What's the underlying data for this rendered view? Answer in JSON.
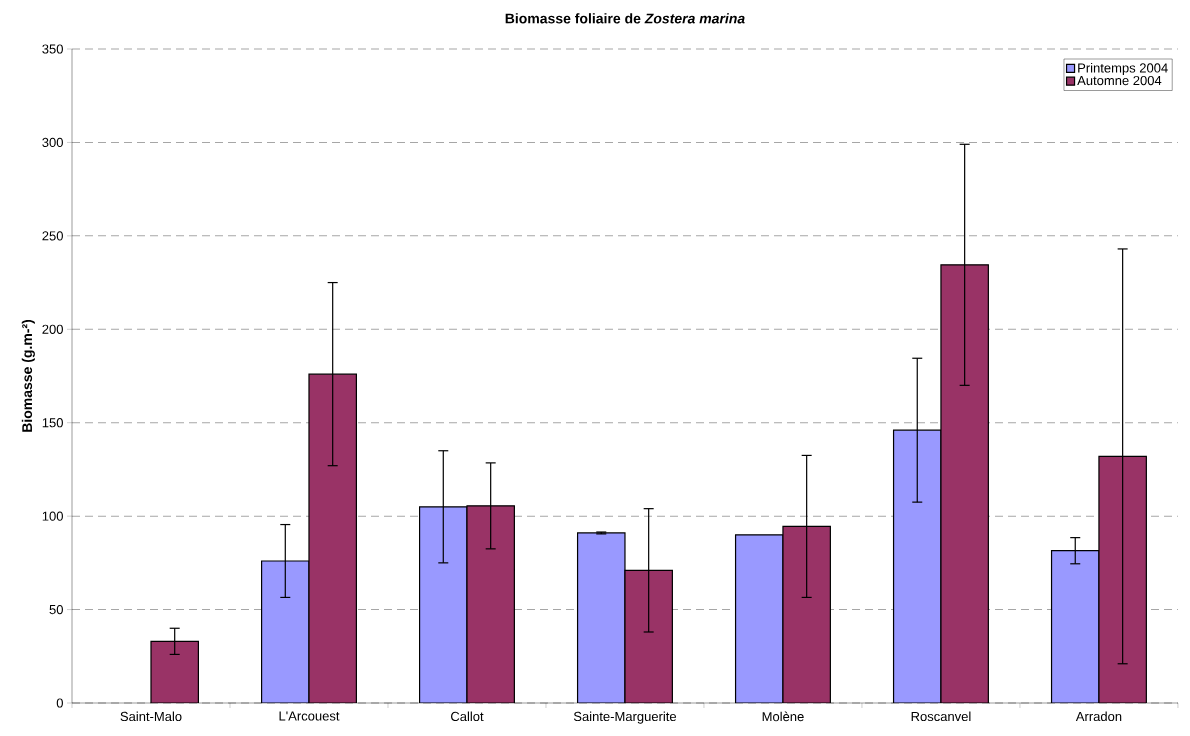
{
  "chart_data": {
    "type": "bar",
    "title": "Biomasse foliaire de *Zostera marina*",
    "ylabel": "Biomasse (g.m-²)",
    "categories": [
      "Saint-Malo",
      "L'Arcouest",
      "Callot",
      "Sainte-Marguerite",
      "Molène",
      "Roscanvel",
      "Arradon"
    ],
    "series": [
      {
        "name": "Printemps 2004",
        "color": "#9999ff",
        "values": [
          null,
          76,
          105,
          91,
          90,
          146,
          81.5
        ],
        "errors": [
          null,
          19.5,
          30,
          0.5,
          null,
          38.5,
          7
        ]
      },
      {
        "name": "Automne 2004",
        "color": "#993366",
        "values": [
          33,
          176,
          105.5,
          71,
          94.5,
          234.5,
          132
        ],
        "errors": [
          7,
          49,
          23,
          33,
          38,
          64.5,
          111
        ]
      }
    ],
    "ylim": [
      0,
      350
    ],
    "yticks": [
      0,
      50,
      100,
      150,
      200,
      250,
      300,
      350
    ],
    "grid": "y",
    "legend": "top right"
  }
}
